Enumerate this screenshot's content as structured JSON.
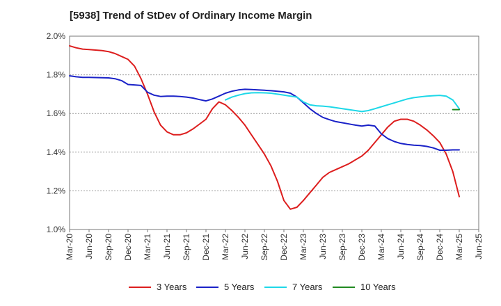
{
  "chart_data": {
    "type": "line",
    "title": "[5938]  Trend of StDev of Ordinary Income Margin",
    "xlabel": "",
    "ylabel": "",
    "ylim": [
      1.0,
      2.0
    ],
    "y_ticks": [
      1.0,
      1.2,
      1.4,
      1.6,
      1.8,
      2.0
    ],
    "y_tick_labels": [
      "1.0%",
      "1.2%",
      "1.4%",
      "1.6%",
      "1.8%",
      "2.0%"
    ],
    "x_tick_labels": [
      "Mar-20",
      "Jun-20",
      "Sep-20",
      "Dec-20",
      "Mar-21",
      "Jun-21",
      "Sep-21",
      "Dec-21",
      "Mar-22",
      "Jun-22",
      "Sep-22",
      "Dec-22",
      "Mar-23",
      "Jun-23",
      "Sep-23",
      "Dec-23",
      "Mar-24",
      "Jun-24",
      "Sep-24",
      "Dec-24",
      "Mar-25",
      "Jun-25"
    ],
    "grid": "horizontal dashed",
    "legend_position": "bottom",
    "series": [
      {
        "name": "3 Years",
        "color": "#dd1e1e",
        "x": [
          "Mar-20",
          "Apr-20",
          "May-20",
          "Jun-20",
          "Jul-20",
          "Aug-20",
          "Sep-20",
          "Oct-20",
          "Nov-20",
          "Dec-20",
          "Jan-21",
          "Feb-21",
          "Mar-21",
          "Apr-21",
          "May-21",
          "Jun-21",
          "Jul-21",
          "Aug-21",
          "Sep-21",
          "Oct-21",
          "Nov-21",
          "Dec-21",
          "Jan-22",
          "Feb-22",
          "Mar-22",
          "Apr-22",
          "May-22",
          "Jun-22",
          "Jul-22",
          "Aug-22",
          "Sep-22",
          "Oct-22",
          "Nov-22",
          "Dec-22",
          "Jan-23",
          "Feb-23",
          "Mar-23",
          "Apr-23",
          "May-23",
          "Jun-23",
          "Jul-23",
          "Aug-23",
          "Sep-23",
          "Oct-23",
          "Nov-23",
          "Dec-23",
          "Jan-24",
          "Feb-24",
          "Mar-24",
          "Apr-24",
          "May-24",
          "Jun-24",
          "Jul-24",
          "Aug-24",
          "Sep-24",
          "Oct-24",
          "Nov-24",
          "Dec-24",
          "Jan-25",
          "Feb-25",
          "Mar-25"
        ],
        "values": [
          1.95,
          1.94,
          1.933,
          1.931,
          1.928,
          1.925,
          1.92,
          1.91,
          1.895,
          1.88,
          1.845,
          1.78,
          1.7,
          1.61,
          1.54,
          1.505,
          1.49,
          1.49,
          1.5,
          1.52,
          1.545,
          1.57,
          1.625,
          1.66,
          1.645,
          1.615,
          1.58,
          1.54,
          1.49,
          1.44,
          1.39,
          1.33,
          1.25,
          1.15,
          1.105,
          1.115,
          1.15,
          1.19,
          1.23,
          1.27,
          1.295,
          1.31,
          1.325,
          1.34,
          1.36,
          1.38,
          1.41,
          1.45,
          1.49,
          1.53,
          1.56,
          1.57,
          1.57,
          1.56,
          1.54,
          1.515,
          1.485,
          1.45,
          1.39,
          1.3,
          1.17
        ]
      },
      {
        "name": "5 Years",
        "color": "#1a22c8",
        "x": [
          "Mar-20",
          "Apr-20",
          "May-20",
          "Jun-20",
          "Jul-20",
          "Aug-20",
          "Sep-20",
          "Oct-20",
          "Nov-20",
          "Dec-20",
          "Jan-21",
          "Feb-21",
          "Mar-21",
          "Apr-21",
          "May-21",
          "Jun-21",
          "Jul-21",
          "Aug-21",
          "Sep-21",
          "Oct-21",
          "Nov-21",
          "Dec-21",
          "Jan-22",
          "Feb-22",
          "Mar-22",
          "Apr-22",
          "May-22",
          "Jun-22",
          "Jul-22",
          "Aug-22",
          "Sep-22",
          "Oct-22",
          "Nov-22",
          "Dec-22",
          "Jan-23",
          "Feb-23",
          "Mar-23",
          "Apr-23",
          "May-23",
          "Jun-23",
          "Jul-23",
          "Aug-23",
          "Sep-23",
          "Oct-23",
          "Nov-23",
          "Dec-23",
          "Jan-24",
          "Feb-24",
          "Mar-24",
          "Apr-24",
          "May-24",
          "Jun-24",
          "Jul-24",
          "Aug-24",
          "Sep-24",
          "Oct-24",
          "Nov-24",
          "Dec-24",
          "Jan-25",
          "Feb-25",
          "Mar-25"
        ],
        "values": [
          1.795,
          1.79,
          1.787,
          1.787,
          1.786,
          1.785,
          1.784,
          1.78,
          1.77,
          1.75,
          1.748,
          1.745,
          1.71,
          1.695,
          1.688,
          1.69,
          1.69,
          1.688,
          1.685,
          1.68,
          1.672,
          1.665,
          1.675,
          1.69,
          1.705,
          1.715,
          1.722,
          1.725,
          1.724,
          1.722,
          1.72,
          1.718,
          1.715,
          1.712,
          1.705,
          1.685,
          1.655,
          1.625,
          1.6,
          1.58,
          1.568,
          1.558,
          1.552,
          1.546,
          1.54,
          1.535,
          1.54,
          1.535,
          1.495,
          1.47,
          1.455,
          1.445,
          1.44,
          1.436,
          1.434,
          1.43,
          1.422,
          1.41,
          1.41,
          1.412,
          1.412
        ]
      },
      {
        "name": "7 Years",
        "color": "#1ed8e8",
        "x": [
          "Mar-22",
          "Apr-22",
          "May-22",
          "Jun-22",
          "Jul-22",
          "Aug-22",
          "Sep-22",
          "Oct-22",
          "Nov-22",
          "Dec-22",
          "Jan-23",
          "Feb-23",
          "Mar-23",
          "Apr-23",
          "May-23",
          "Jun-23",
          "Jul-23",
          "Aug-23",
          "Sep-23",
          "Oct-23",
          "Nov-23",
          "Dec-23",
          "Jan-24",
          "Feb-24",
          "Mar-24",
          "Apr-24",
          "May-24",
          "Jun-24",
          "Jul-24",
          "Aug-24",
          "Sep-24",
          "Oct-24",
          "Nov-24",
          "Dec-24",
          "Jan-25",
          "Feb-25",
          "Mar-25"
        ],
        "values": [
          1.67,
          1.685,
          1.695,
          1.703,
          1.707,
          1.708,
          1.707,
          1.705,
          1.7,
          1.695,
          1.69,
          1.685,
          1.66,
          1.645,
          1.64,
          1.638,
          1.635,
          1.63,
          1.625,
          1.62,
          1.615,
          1.61,
          1.615,
          1.625,
          1.635,
          1.645,
          1.655,
          1.665,
          1.675,
          1.682,
          1.686,
          1.69,
          1.692,
          1.694,
          1.69,
          1.67,
          1.625
        ]
      },
      {
        "name": "10 Years",
        "color": "#218a21",
        "x": [
          "Feb-25",
          "Mar-25"
        ],
        "values": [
          1.62,
          1.62
        ]
      }
    ]
  }
}
